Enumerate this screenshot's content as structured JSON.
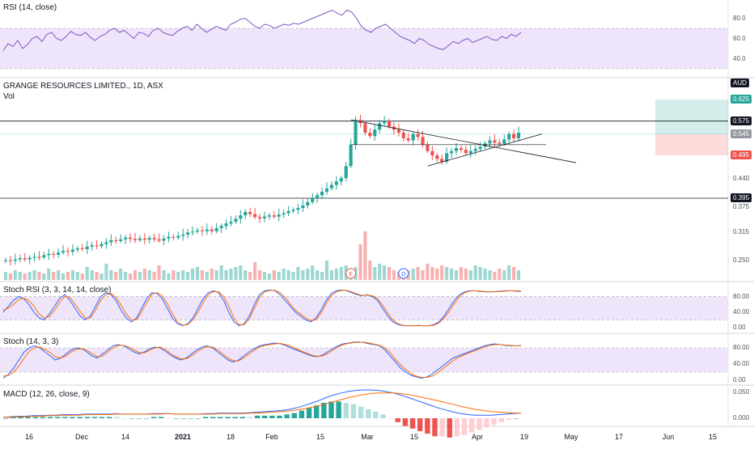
{
  "chart_data": {
    "type": "candlestick",
    "title": "GRANGE RESOURCES LIMITED., 1D, ASX",
    "subtitle": "Vol",
    "currency": "AUD",
    "x_ticks": [
      "16",
      "Dec",
      "14",
      "2021",
      "18",
      "Feb",
      "15",
      "Mar",
      "15",
      "Apr",
      "19",
      "May",
      "17",
      "Jun",
      "15"
    ],
    "price_axis_ticks": [
      "0.440",
      "0.375",
      "0.315",
      "0.250"
    ],
    "price_tags": [
      {
        "label": "0.625",
        "color": "#26a69a",
        "text_color": "#ffffff"
      },
      {
        "label": "0.575",
        "color": "#131722",
        "text_color": "#ffffff"
      },
      {
        "label": "0.545",
        "color": "#9598a1",
        "text_color": "#ffffff"
      },
      {
        "label": "0.495",
        "color": "#ef5350",
        "text_color": "#ffffff"
      },
      {
        "label": "0.395",
        "color": "#131722",
        "text_color": "#ffffff"
      }
    ],
    "horizontal_levels": [
      0.575,
      0.395
    ],
    "close": [
      0.25,
      0.249,
      0.252,
      0.255,
      0.252,
      0.256,
      0.258,
      0.257,
      0.262,
      0.265,
      0.263,
      0.268,
      0.272,
      0.27,
      0.275,
      0.278,
      0.276,
      0.282,
      0.285,
      0.283,
      0.288,
      0.292,
      0.297,
      0.295,
      0.299,
      0.303,
      0.3,
      0.297,
      0.301,
      0.298,
      0.302,
      0.299,
      0.296,
      0.301,
      0.305,
      0.303,
      0.307,
      0.31,
      0.315,
      0.317,
      0.32,
      0.318,
      0.322,
      0.318,
      0.325,
      0.33,
      0.336,
      0.34,
      0.347,
      0.355,
      0.363,
      0.358,
      0.351,
      0.348,
      0.352,
      0.355,
      0.352,
      0.357,
      0.36,
      0.365,
      0.368,
      0.372,
      0.378,
      0.386,
      0.395,
      0.402,
      0.41,
      0.418,
      0.426,
      0.434,
      0.442,
      0.47,
      0.52,
      0.578,
      0.57,
      0.548,
      0.54,
      0.555,
      0.57,
      0.575,
      0.562,
      0.555,
      0.548,
      0.535,
      0.53,
      0.545,
      0.538,
      0.52,
      0.505,
      0.495,
      0.487,
      0.48,
      0.5,
      0.505,
      0.512,
      0.508,
      0.5,
      0.505,
      0.51,
      0.515,
      0.523,
      0.53,
      0.525,
      0.522,
      0.532,
      0.545,
      0.535,
      0.548
    ],
    "volume": [
      5,
      4,
      6,
      5,
      4,
      5,
      6,
      5,
      4,
      7,
      5,
      6,
      4,
      5,
      6,
      5,
      4,
      8,
      6,
      5,
      4,
      10,
      6,
      5,
      7,
      5,
      4,
      6,
      5,
      7,
      6,
      5,
      9,
      6,
      4,
      6,
      5,
      6,
      5,
      7,
      8,
      6,
      5,
      7,
      6,
      9,
      6,
      7,
      8,
      9,
      6,
      5,
      11,
      6,
      5,
      4,
      6,
      5,
      7,
      6,
      5,
      8,
      6,
      7,
      9,
      6,
      5,
      12,
      6,
      7,
      8,
      9,
      6,
      8,
      22,
      30,
      12,
      8,
      10,
      9,
      8,
      6,
      5,
      7,
      6,
      7,
      8,
      6,
      10,
      8,
      7,
      9,
      8,
      7,
      6,
      8,
      7,
      6,
      9,
      8,
      7,
      6,
      5,
      7,
      6,
      9,
      8,
      6
    ],
    "markers": [
      "E",
      "D"
    ],
    "rsi": {
      "label": "RSI (14, close)",
      "levels": [
        70,
        30
      ],
      "axis_ticks": [
        "80.0",
        "60.0",
        "40.0"
      ],
      "values": [
        48,
        55,
        52,
        58,
        50,
        54,
        60,
        62,
        57,
        64,
        66,
        60,
        58,
        62,
        67,
        64,
        63,
        66,
        61,
        58,
        62,
        64,
        68,
        70,
        66,
        68,
        64,
        60,
        66,
        65,
        62,
        68,
        70,
        66,
        64,
        63,
        67,
        70,
        72,
        68,
        74,
        70,
        66,
        69,
        72,
        70,
        68,
        74,
        76,
        79,
        80,
        76,
        72,
        70,
        74,
        73,
        70,
        72,
        74,
        73,
        75,
        74,
        76,
        78,
        80,
        82,
        84,
        86,
        88,
        85,
        83,
        88,
        86,
        80,
        72,
        68,
        66,
        70,
        72,
        74,
        70,
        66,
        62,
        60,
        58,
        55,
        60,
        58,
        54,
        52,
        50,
        49,
        53,
        57,
        55,
        58,
        60,
        56,
        58,
        60,
        62,
        59,
        58,
        62,
        60,
        64,
        62,
        66
      ]
    },
    "stoch_rsi": {
      "label": "Stoch RSI (3, 3, 14, 14, close)",
      "axis_ticks": [
        "80.00",
        "40.00",
        "0.00"
      ],
      "k": [
        40,
        55,
        70,
        80,
        75,
        60,
        40,
        25,
        20,
        35,
        55,
        75,
        85,
        70,
        50,
        30,
        20,
        30,
        55,
        80,
        90,
        85,
        70,
        45,
        25,
        15,
        25,
        50,
        75,
        90,
        88,
        75,
        50,
        25,
        10,
        5,
        10,
        25,
        50,
        75,
        90,
        95,
        90,
        70,
        40,
        15,
        5,
        10,
        30,
        60,
        85,
        95,
        97,
        95,
        85,
        70,
        55,
        40,
        30,
        20,
        15,
        25,
        45,
        70,
        88,
        95,
        97,
        95,
        90,
        85,
        82,
        85,
        80,
        70,
        50,
        30,
        15,
        8,
        5,
        5,
        5,
        6,
        5,
        5,
        8,
        15,
        30,
        50,
        70,
        85,
        92,
        95,
        95,
        93,
        92,
        92,
        93,
        94,
        95,
        95,
        94,
        93
      ],
      "d": [
        45,
        50,
        60,
        72,
        76,
        70,
        55,
        35,
        25,
        28,
        45,
        65,
        80,
        78,
        60,
        42,
        25,
        25,
        45,
        70,
        85,
        88,
        78,
        58,
        35,
        20,
        20,
        40,
        65,
        85,
        90,
        82,
        62,
        35,
        15,
        6,
        8,
        20,
        40,
        65,
        85,
        93,
        92,
        80,
        55,
        25,
        8,
        8,
        22,
        50,
        78,
        92,
        96,
        96,
        90,
        78,
        60,
        45,
        35,
        25,
        18,
        20,
        38,
        62,
        82,
        92,
        96,
        96,
        92,
        87,
        83,
        84,
        82,
        75,
        58,
        38,
        20,
        10,
        6,
        5,
        5,
        5,
        5,
        5,
        6,
        12,
        25,
        42,
        62,
        80,
        90,
        94,
        95,
        94,
        93,
        92,
        92,
        93,
        94,
        95,
        95,
        94
      ]
    },
    "stoch": {
      "label": "Stoch (14, 3, 3)",
      "axis_ticks": [
        "80.00",
        "40.00",
        "0.00"
      ],
      "k": [
        5,
        15,
        30,
        50,
        70,
        80,
        85,
        80,
        70,
        60,
        50,
        55,
        65,
        75,
        80,
        78,
        70,
        60,
        55,
        65,
        75,
        85,
        88,
        85,
        78,
        70,
        65,
        70,
        78,
        82,
        80,
        72,
        62,
        55,
        50,
        55,
        65,
        75,
        82,
        85,
        80,
        70,
        60,
        50,
        45,
        50,
        60,
        70,
        78,
        85,
        88,
        90,
        92,
        90,
        86,
        80,
        75,
        70,
        65,
        60,
        58,
        62,
        70,
        78,
        85,
        90,
        92,
        94,
        95,
        93,
        90,
        88,
        85,
        75,
        60,
        45,
        30,
        20,
        12,
        8,
        5,
        8,
        15,
        25,
        35,
        45,
        55,
        60,
        65,
        70,
        75,
        80,
        85,
        88,
        90,
        88,
        86,
        85,
        85,
        86
      ],
      "d": [
        10,
        12,
        20,
        35,
        55,
        72,
        80,
        82,
        76,
        68,
        58,
        55,
        60,
        70,
        76,
        78,
        74,
        66,
        58,
        60,
        70,
        80,
        86,
        86,
        82,
        75,
        68,
        68,
        74,
        80,
        82,
        76,
        66,
        58,
        53,
        53,
        60,
        70,
        78,
        83,
        82,
        75,
        65,
        55,
        48,
        48,
        55,
        65,
        74,
        82,
        86,
        88,
        90,
        91,
        88,
        84,
        78,
        72,
        67,
        62,
        59,
        60,
        66,
        74,
        82,
        88,
        91,
        93,
        94,
        94,
        92,
        89,
        86,
        80,
        68,
        52,
        38,
        26,
        16,
        10,
        7,
        7,
        10,
        18,
        28,
        38,
        48,
        56,
        62,
        67,
        72,
        77,
        82,
        86,
        88,
        88,
        87,
        86,
        85,
        85
      ]
    },
    "macd": {
      "label": "MACD (12, 26, close, 9)",
      "axis_ticks": [
        "0.050",
        "0.000"
      ],
      "macd": [
        0.002,
        0.003,
        0.004,
        0.004,
        0.005,
        0.005,
        0.006,
        0.006,
        0.007,
        0.007,
        0.007,
        0.008,
        0.008,
        0.008,
        0.008,
        0.009,
        0.008,
        0.008,
        0.008,
        0.008,
        0.009,
        0.009,
        0.009,
        0.008,
        0.008,
        0.008,
        0.008,
        0.009,
        0.009,
        0.01,
        0.01,
        0.01,
        0.01,
        0.011,
        0.012,
        0.013,
        0.014,
        0.015,
        0.017,
        0.02,
        0.024,
        0.029,
        0.034,
        0.04,
        0.045,
        0.049,
        0.052,
        0.054,
        0.055,
        0.055,
        0.054,
        0.052,
        0.049,
        0.045,
        0.04,
        0.035,
        0.03,
        0.025,
        0.02,
        0.016,
        0.012,
        0.009,
        0.007,
        0.006,
        0.006,
        0.006,
        0.007,
        0.008,
        0.009,
        0.01
      ],
      "signal": [
        0.002,
        0.002,
        0.003,
        0.003,
        0.004,
        0.004,
        0.005,
        0.005,
        0.006,
        0.006,
        0.006,
        0.007,
        0.007,
        0.007,
        0.007,
        0.008,
        0.008,
        0.008,
        0.008,
        0.008,
        0.008,
        0.008,
        0.009,
        0.008,
        0.008,
        0.008,
        0.008,
        0.008,
        0.008,
        0.009,
        0.009,
        0.009,
        0.009,
        0.01,
        0.01,
        0.011,
        0.012,
        0.013,
        0.014,
        0.016,
        0.018,
        0.021,
        0.024,
        0.028,
        0.032,
        0.036,
        0.04,
        0.043,
        0.046,
        0.048,
        0.049,
        0.049,
        0.049,
        0.048,
        0.046,
        0.043,
        0.04,
        0.037,
        0.034,
        0.03,
        0.027,
        0.023,
        0.02,
        0.017,
        0.015,
        0.013,
        0.012,
        0.011,
        0.01,
        0.01
      ]
    }
  },
  "colors": {
    "up": "#26a69a",
    "down": "#ef5350",
    "band": "#e9dcf8",
    "rsi_line": "#7e57c2",
    "blue_line": "#2962ff",
    "orange_line": "#ff6d00"
  }
}
